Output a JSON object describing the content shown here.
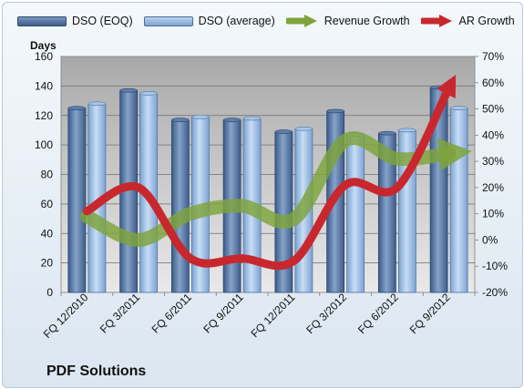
{
  "chart_data": {
    "type": "bar",
    "categories": [
      "FQ 12/2010",
      "FQ 3/2011",
      "FQ 6/2011",
      "FQ 9/2011",
      "FQ 12/2011",
      "FQ 3/2012",
      "FQ 6/2012",
      "FQ 9/2012"
    ],
    "series": [
      {
        "name": "DSO (EOQ)",
        "type": "bar",
        "axis": "left",
        "color": "#4e6f9c",
        "values": [
          125,
          137,
          117,
          117,
          109,
          123,
          108,
          139
        ]
      },
      {
        "name": "DSO (average)",
        "type": "bar",
        "axis": "left",
        "color": "#8fb4df",
        "values": [
          128,
          135,
          119,
          118,
          111,
          107,
          110,
          125
        ]
      },
      {
        "name": "Revenue Growth",
        "type": "line",
        "axis": "right",
        "color": "#7ea33b",
        "unit": "percent",
        "values": [
          9,
          0,
          10,
          13,
          8,
          38,
          31,
          33
        ]
      },
      {
        "name": "AR Growth",
        "type": "line",
        "axis": "right",
        "color": "#c8282d",
        "unit": "percent",
        "values": [
          11,
          20,
          -7,
          -7,
          -8,
          21,
          20,
          58
        ]
      }
    ],
    "ylabel": "Days",
    "ylim": [
      0,
      160
    ],
    "yticks": [
      "0",
      "20",
      "40",
      "60",
      "80",
      "100",
      "120",
      "140",
      "160"
    ],
    "y2lim": [
      -20,
      70
    ],
    "y2ticks": [
      "-20%",
      "-10%",
      "0%",
      "10%",
      "20%",
      "30%",
      "40%",
      "50%",
      "60%",
      "70%"
    ],
    "grid": true,
    "legend_position": "top",
    "footer": "PDF Solutions"
  }
}
